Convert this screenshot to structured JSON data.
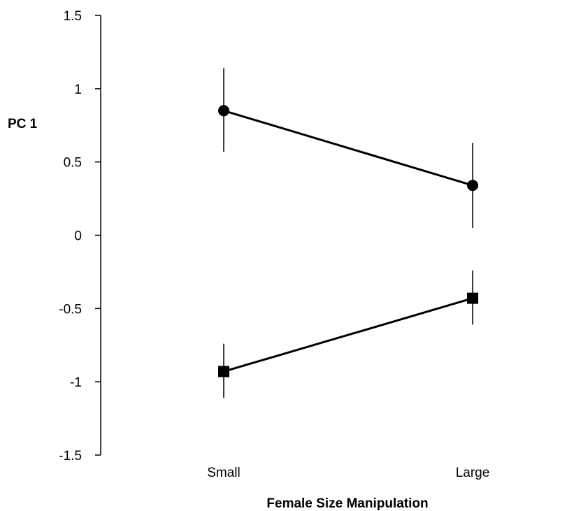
{
  "chart_data": {
    "type": "line",
    "xlabel": "Female Size Manipulation",
    "ylabel": "PC 1",
    "categories": [
      "Small",
      "Large"
    ],
    "ylim": [
      -1.5,
      1.5
    ],
    "yticks": [
      "-1.5",
      "-1",
      "-0.5",
      "0",
      "0.5",
      "1",
      "1.5"
    ],
    "grid": false,
    "legend": "none",
    "series": [
      {
        "marker": "circle",
        "color": "#000000",
        "values": [
          0.85,
          0.34
        ],
        "error_low": [
          0.57,
          0.05
        ],
        "error_high": [
          1.14,
          0.63
        ]
      },
      {
        "marker": "square",
        "color": "#000000",
        "values": [
          -0.93,
          -0.43
        ],
        "error_low": [
          -1.11,
          -0.61
        ],
        "error_high": [
          -0.74,
          -0.24
        ]
      }
    ]
  }
}
